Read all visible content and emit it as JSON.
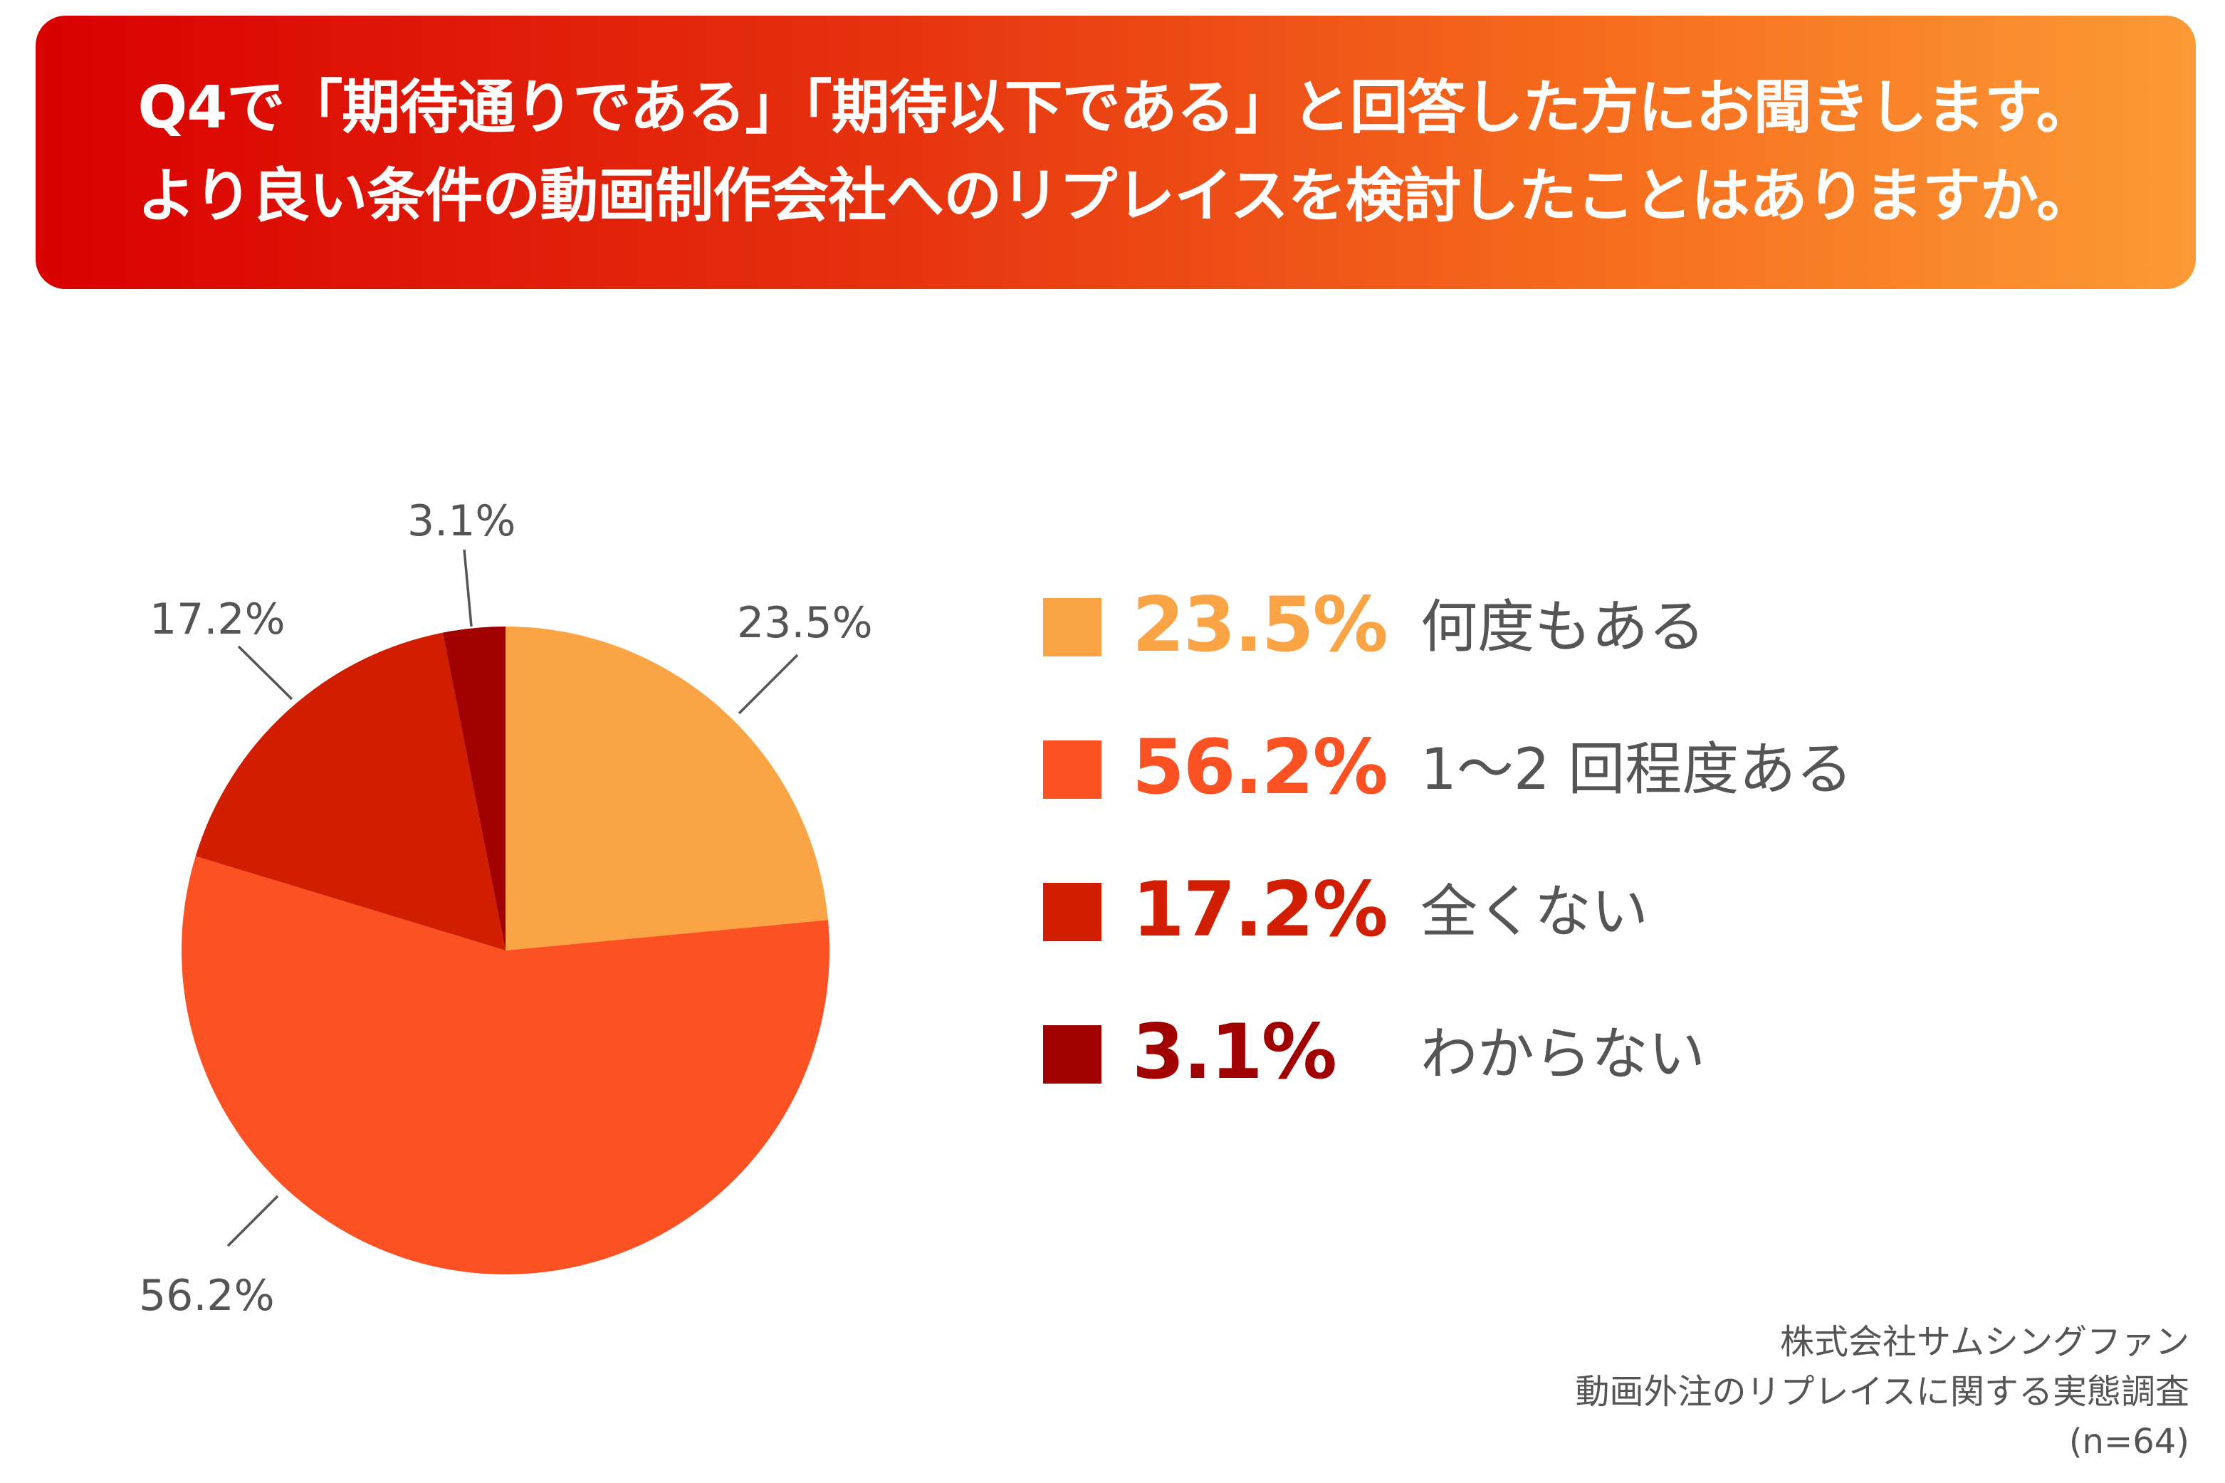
{
  "header": {
    "line1": "Q4で「期待通りである」「期待以下である」と回答した方にお聞きします。",
    "line2": "より良い条件の動画制作会社へのリプレイスを検討したことはありますか。"
  },
  "chart_data": {
    "type": "pie",
    "title": "より良い条件の動画制作会社へのリプレイスを検討したことはありますか。",
    "categories": [
      "何度もある",
      "1〜2 回程度ある",
      "全くない",
      "わからない"
    ],
    "values": [
      23.5,
      56.2,
      17.2,
      3.1
    ],
    "labels": [
      "23.5%",
      "56.2%",
      "17.2%",
      "3.1%"
    ],
    "colors": [
      "#fba446",
      "#fc5223",
      "#d21e00",
      "#a00000"
    ],
    "start": "12 o'clock",
    "direction": "clockwise",
    "legend_position": "right"
  },
  "source": {
    "company": "株式会社サムシングファン",
    "survey": "動画外注のリプレイスに関する実態調査",
    "sample": "(n=64)"
  }
}
